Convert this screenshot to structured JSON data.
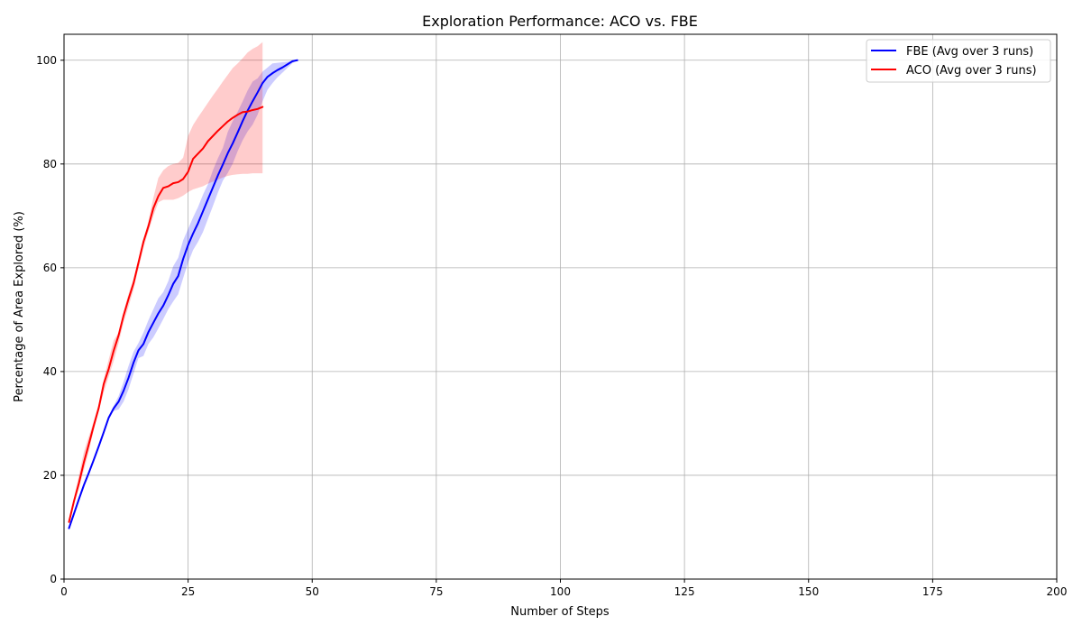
{
  "chart_data": {
    "type": "line",
    "title": "Exploration Performance: ACO vs. FBE",
    "xlabel": "Number of Steps",
    "ylabel": "Percentage of Area Explored (%)",
    "xlim": [
      0,
      200
    ],
    "ylim": [
      0,
      105
    ],
    "xticks": [
      0,
      25,
      50,
      75,
      100,
      125,
      150,
      175,
      200
    ],
    "yticks": [
      0,
      20,
      40,
      60,
      80,
      100
    ],
    "grid": true,
    "legend_position": "top-right",
    "series": [
      {
        "name": "FBE (Avg over 3 runs)",
        "color": "#0000ff",
        "band_color": "#0000ff",
        "band_opacity": 0.2,
        "x": [
          1,
          2,
          3,
          4,
          5,
          6,
          7,
          8,
          9,
          10,
          11,
          12,
          13,
          14,
          15,
          16,
          17,
          18,
          19,
          20,
          21,
          22,
          23,
          24,
          25,
          26,
          27,
          28,
          29,
          30,
          31,
          32,
          33,
          34,
          35,
          36,
          37,
          38,
          39,
          40,
          41,
          42,
          43,
          44,
          45,
          46,
          47
        ],
        "y": [
          9.8,
          12.6,
          15.4,
          18.1,
          20.5,
          23,
          25.6,
          28.3,
          31.1,
          32.9,
          34.2,
          36.3,
          38.8,
          41.7,
          44.1,
          45.3,
          47.6,
          49.4,
          51.2,
          52.7,
          54.7,
          56.9,
          58.4,
          61.7,
          64.4,
          66.6,
          68.6,
          70.9,
          73.2,
          75.5,
          77.8,
          79.9,
          82.1,
          84,
          86.1,
          88.3,
          90.3,
          92.1,
          93.8,
          95.6,
          96.8,
          97.5,
          98.1,
          98.6,
          99.2,
          99.8,
          100
        ],
        "lower": [
          9.8,
          12.6,
          15.4,
          18.1,
          20.5,
          23,
          25.6,
          28.3,
          31.1,
          32.4,
          32.7,
          34.2,
          36.6,
          39.6,
          42.6,
          43,
          45.3,
          46.6,
          48.3,
          50.1,
          52,
          53.5,
          54.9,
          58,
          61,
          63.4,
          65,
          66.9,
          69.4,
          71.9,
          74.5,
          76.8,
          78.3,
          80.1,
          82.5,
          84.6,
          86.3,
          87.6,
          89.5,
          92.1,
          94.3,
          95.6,
          96.7,
          97.6,
          98.5,
          99.4,
          100
        ],
        "upper": [
          9.8,
          12.6,
          15.4,
          18.1,
          20.5,
          23,
          25.6,
          28.3,
          31.1,
          33.4,
          35.3,
          38,
          41.1,
          43.8,
          45.5,
          47.5,
          49.9,
          52,
          54.1,
          55.3,
          57.4,
          60.3,
          61.9,
          65.3,
          67.5,
          69.7,
          71.7,
          74.1,
          76.1,
          78.8,
          81.1,
          83.1,
          86.2,
          88.3,
          90.1,
          92.1,
          94.2,
          95.9,
          96.5,
          97.8,
          98.6,
          99.4,
          99.5,
          99.6,
          99.7,
          99.9,
          100
        ]
      },
      {
        "name": "ACO (Avg over 3 runs)",
        "color": "#ff0000",
        "band_color": "#ff0000",
        "band_opacity": 0.2,
        "x": [
          1,
          2,
          3,
          4,
          5,
          6,
          7,
          8,
          9,
          10,
          11,
          12,
          13,
          14,
          15,
          16,
          17,
          18,
          19,
          20,
          21,
          22,
          23,
          24,
          25,
          26,
          27,
          28,
          29,
          30,
          31,
          32,
          33,
          34,
          35,
          36,
          37,
          38,
          39,
          40
        ],
        "y": [
          11,
          15,
          18.5,
          22.5,
          26,
          29.6,
          33,
          37.6,
          40.5,
          44,
          47,
          50.8,
          54,
          57,
          61,
          65,
          68,
          71.5,
          73.8,
          75.4,
          75.7,
          76.3,
          76.5,
          77.1,
          78.5,
          81,
          82,
          83,
          84.4,
          85.4,
          86.4,
          87.3,
          88.2,
          88.9,
          89.5,
          90,
          90.1,
          90.4,
          90.6,
          91
        ],
        "lower": [
          11,
          14.5,
          17.5,
          21,
          24.6,
          28.8,
          32.4,
          36,
          39,
          42,
          45.5,
          49.5,
          52.5,
          55.8,
          59.8,
          63.8,
          67,
          70,
          72.6,
          73.1,
          73.1,
          73.1,
          73.4,
          73.9,
          74.6,
          75.1,
          75.4,
          75.7,
          76.2,
          76.6,
          77,
          77.4,
          77.7,
          77.9,
          78,
          78.1,
          78.1,
          78.2,
          78.2,
          78.2
        ],
        "upper": [
          11.3,
          15.7,
          20,
          24.5,
          27.5,
          30.5,
          33.8,
          38.5,
          42.3,
          46,
          47.5,
          51.5,
          55,
          57.8,
          61.5,
          65.5,
          69,
          73.5,
          77.3,
          78.8,
          79.6,
          80,
          80.2,
          81.2,
          85.4,
          87.5,
          89,
          90.4,
          91.8,
          93.2,
          94.5,
          95.9,
          97.2,
          98.5,
          99.4,
          100.4,
          101.5,
          102.2,
          102.7,
          103.5
        ]
      }
    ]
  }
}
